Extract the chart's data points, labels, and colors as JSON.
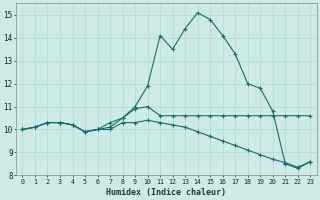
{
  "xlabel": "Humidex (Indice chaleur)",
  "xlim": [
    -0.5,
    23.5
  ],
  "ylim": [
    8,
    15.5
  ],
  "yticks": [
    8,
    9,
    10,
    11,
    12,
    13,
    14,
    15
  ],
  "xticks": [
    0,
    1,
    2,
    3,
    4,
    5,
    6,
    7,
    8,
    9,
    10,
    11,
    12,
    13,
    14,
    15,
    16,
    17,
    18,
    19,
    20,
    21,
    22,
    23
  ],
  "bg_color": "#ceeae6",
  "line_color": "#1a6b6b",
  "grid_color": "#b0d8d4",
  "line1_x": [
    0,
    1,
    2,
    3,
    4,
    5,
    6,
    7,
    8,
    9,
    10,
    11,
    12,
    13,
    14,
    15,
    16,
    17,
    18,
    19,
    20,
    21,
    22,
    23
  ],
  "line1_y": [
    10.0,
    10.1,
    10.3,
    10.3,
    10.2,
    9.9,
    10.0,
    10.1,
    10.5,
    10.9,
    11.0,
    10.6,
    10.6,
    10.6,
    10.6,
    10.6,
    10.6,
    10.6,
    10.6,
    10.6,
    10.6,
    10.6,
    10.6,
    10.6
  ],
  "line2_x": [
    0,
    1,
    2,
    3,
    4,
    5,
    6,
    7,
    8,
    9,
    10,
    11,
    12,
    13,
    14,
    15,
    16,
    17,
    18,
    19,
    20,
    21,
    22,
    23
  ],
  "line2_y": [
    10.0,
    10.1,
    10.3,
    10.3,
    10.2,
    9.9,
    10.0,
    10.3,
    10.5,
    11.0,
    11.9,
    14.1,
    13.5,
    14.4,
    15.1,
    14.8,
    14.1,
    13.3,
    12.0,
    11.8,
    10.8,
    8.5,
    8.3,
    8.6
  ],
  "line3_x": [
    0,
    1,
    2,
    3,
    4,
    5,
    6,
    7,
    8,
    9,
    10,
    11,
    12,
    13,
    14,
    15,
    16,
    17,
    18,
    19,
    20,
    21,
    22,
    23
  ],
  "line3_y": [
    10.0,
    10.1,
    10.3,
    10.3,
    10.2,
    9.9,
    10.0,
    10.0,
    10.3,
    10.3,
    10.4,
    10.3,
    10.2,
    10.1,
    9.9,
    9.7,
    9.5,
    9.3,
    9.1,
    8.9,
    8.7,
    8.55,
    8.35,
    8.6
  ]
}
